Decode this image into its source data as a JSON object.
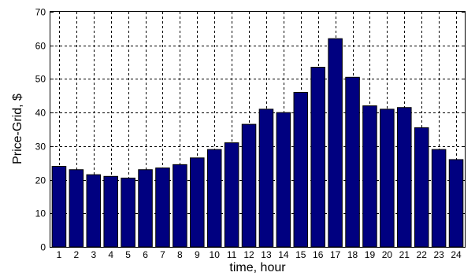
{
  "chart_data": {
    "type": "bar",
    "title": "",
    "xlabel": "time, hour",
    "ylabel": "Price-Grid, $",
    "categories": [
      "1",
      "2",
      "3",
      "4",
      "5",
      "6",
      "7",
      "8",
      "9",
      "10",
      "11",
      "12",
      "13",
      "14",
      "15",
      "16",
      "17",
      "18",
      "19",
      "20",
      "21",
      "22",
      "23",
      "24"
    ],
    "values": [
      24,
      23,
      21.5,
      21,
      20.5,
      23,
      23.5,
      24.5,
      26.5,
      29,
      31,
      36.5,
      41,
      40,
      46,
      53.5,
      62,
      50.5,
      42,
      41,
      41.5,
      35.5,
      29,
      26
    ],
    "ylim": [
      0,
      70
    ],
    "yticks": [
      "0",
      "10",
      "20",
      "30",
      "40",
      "50",
      "60",
      "70"
    ],
    "grid": true,
    "bar_color": "#000080"
  }
}
